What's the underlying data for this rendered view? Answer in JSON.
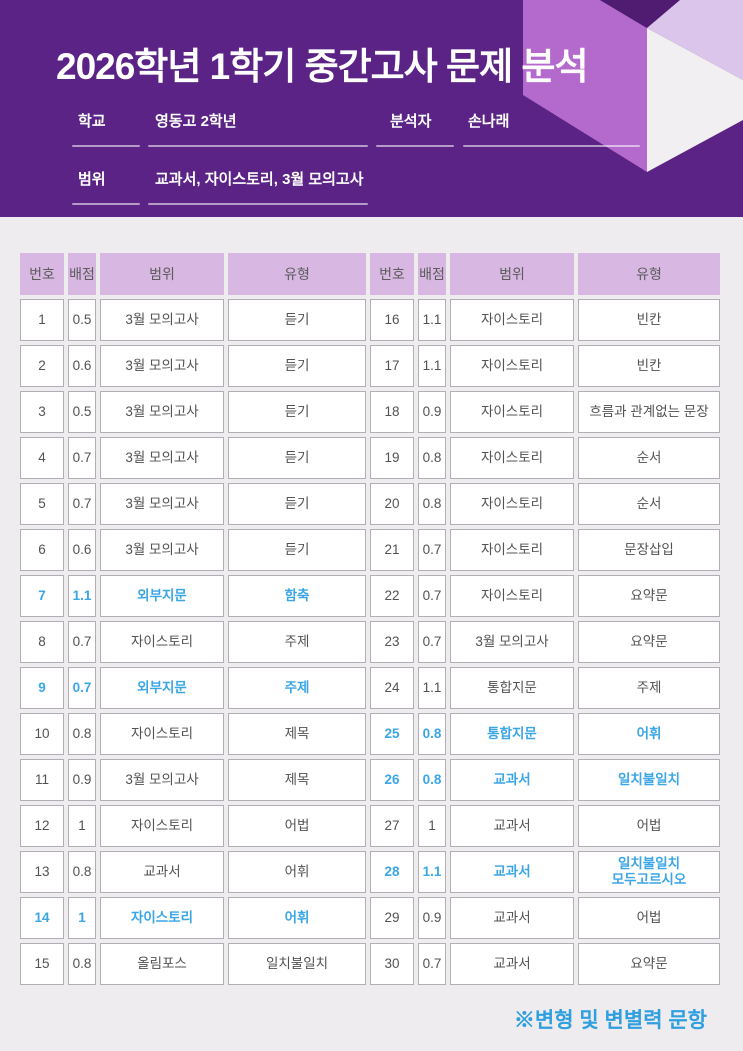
{
  "header": {
    "title": "2026학년 1학기 중간고사 문제 분석",
    "fields": {
      "school_label": "학교",
      "school_value": "영동고 2학년",
      "analyst_label": "분석자",
      "analyst_value": "손나래",
      "scope_label": "범위",
      "scope_value": "교과서, 자이스토리, 3월 모의고사"
    }
  },
  "table": {
    "columns": [
      "번호",
      "배점",
      "범위",
      "유형",
      "번호",
      "배점",
      "범위",
      "유형"
    ],
    "left_rows": [
      {
        "no": "1",
        "pts": "0.5",
        "scope": "3월 모의고사",
        "type": "듣기",
        "hl": false
      },
      {
        "no": "2",
        "pts": "0.6",
        "scope": "3월 모의고사",
        "type": "듣기",
        "hl": false
      },
      {
        "no": "3",
        "pts": "0.5",
        "scope": "3월 모의고사",
        "type": "듣기",
        "hl": false
      },
      {
        "no": "4",
        "pts": "0.7",
        "scope": "3월 모의고사",
        "type": "듣기",
        "hl": false
      },
      {
        "no": "5",
        "pts": "0.7",
        "scope": "3월 모의고사",
        "type": "듣기",
        "hl": false
      },
      {
        "no": "6",
        "pts": "0.6",
        "scope": "3월 모의고사",
        "type": "듣기",
        "hl": false
      },
      {
        "no": "7",
        "pts": "1.1",
        "scope": "외부지문",
        "type": "함축",
        "hl": true
      },
      {
        "no": "8",
        "pts": "0.7",
        "scope": "자이스토리",
        "type": "주제",
        "hl": false
      },
      {
        "no": "9",
        "pts": "0.7",
        "scope": "외부지문",
        "type": "주제",
        "hl": true
      },
      {
        "no": "10",
        "pts": "0.8",
        "scope": "자이스토리",
        "type": "제목",
        "hl": false
      },
      {
        "no": "11",
        "pts": "0.9",
        "scope": "3월 모의고사",
        "type": "제목",
        "hl": false
      },
      {
        "no": "12",
        "pts": "1",
        "scope": "자이스토리",
        "type": "어법",
        "hl": false
      },
      {
        "no": "13",
        "pts": "0.8",
        "scope": "교과서",
        "type": "어휘",
        "hl": false
      },
      {
        "no": "14",
        "pts": "1",
        "scope": "자이스토리",
        "type": "어휘",
        "hl": true
      },
      {
        "no": "15",
        "pts": "0.8",
        "scope": "올림포스",
        "type": "일치불일치",
        "hl": false
      }
    ],
    "right_rows": [
      {
        "no": "16",
        "pts": "1.1",
        "scope": "자이스토리",
        "type": "빈칸",
        "hl": false
      },
      {
        "no": "17",
        "pts": "1.1",
        "scope": "자이스토리",
        "type": "빈칸",
        "hl": false
      },
      {
        "no": "18",
        "pts": "0.9",
        "scope": "자이스토리",
        "type": "흐름과 관계없는 문장",
        "hl": false
      },
      {
        "no": "19",
        "pts": "0.8",
        "scope": "자이스토리",
        "type": "순서",
        "hl": false
      },
      {
        "no": "20",
        "pts": "0.8",
        "scope": "자이스토리",
        "type": "순서",
        "hl": false
      },
      {
        "no": "21",
        "pts": "0.7",
        "scope": "자이스토리",
        "type": "문장삽입",
        "hl": false
      },
      {
        "no": "22",
        "pts": "0.7",
        "scope": "자이스토리",
        "type": "요약문",
        "hl": false
      },
      {
        "no": "23",
        "pts": "0.7",
        "scope": "3월 모의고사",
        "type": "요약문",
        "hl": false
      },
      {
        "no": "24",
        "pts": "1.1",
        "scope": "통합지문",
        "type": "주제",
        "hl": false
      },
      {
        "no": "25",
        "pts": "0.8",
        "scope": "통합지문",
        "type": "어휘",
        "hl": true
      },
      {
        "no": "26",
        "pts": "0.8",
        "scope": "교과서",
        "type": "일치불일치",
        "hl": true
      },
      {
        "no": "27",
        "pts": "1",
        "scope": "교과서",
        "type": "어법",
        "hl": false
      },
      {
        "no": "28",
        "pts": "1.1",
        "scope": "교과서",
        "type": "일치불일치\n모두고르시오",
        "hl": true
      },
      {
        "no": "29",
        "pts": "0.9",
        "scope": "교과서",
        "type": "어법",
        "hl": false
      },
      {
        "no": "30",
        "pts": "0.7",
        "scope": "교과서",
        "type": "요약문",
        "hl": false
      }
    ]
  },
  "footer": {
    "note": "※변형 및 변별력 문항"
  },
  "colors": {
    "header_bg": "#5a2385",
    "deco_face_left": "#b469cd",
    "deco_face_top_right": "#dcc5ea",
    "deco_face_bottom_right": "#f1eff2",
    "deco_notch": "#4f1c72",
    "page_bg": "#eeecee",
    "table_header_bg": "#d9b7e3",
    "cell_border": "#b3adb6",
    "cell_text": "#525252",
    "highlight_blue": "#3aa6e6"
  }
}
